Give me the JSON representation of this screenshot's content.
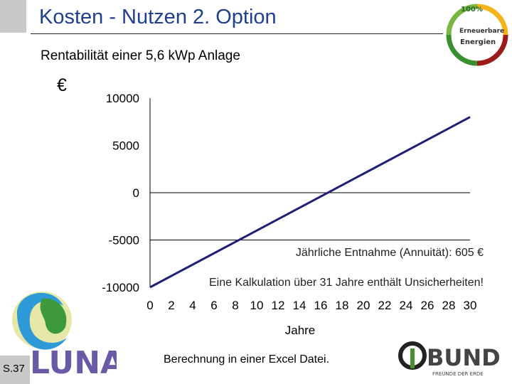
{
  "header": {
    "title": "Kosten - Nutzen 2. Option",
    "subtitle": "Rentabilität einer 5,6 kWp Anlage"
  },
  "renew_logo": {
    "top_text": "100%",
    "line1": "Erneuerbare",
    "line2": "Energien"
  },
  "chart_data": {
    "type": "line",
    "title": "",
    "unit_label": "€",
    "xlabel": "Jahre",
    "ylabel": "€",
    "xlim": [
      0,
      30
    ],
    "ylim": [
      -10000,
      10000
    ],
    "xticks": [
      0,
      2,
      4,
      6,
      8,
      10,
      12,
      14,
      16,
      18,
      20,
      22,
      24,
      26,
      28,
      30
    ],
    "yticks": [
      10000,
      5000,
      0,
      -5000,
      -10000
    ],
    "grid": false,
    "series": [
      {
        "name": "",
        "color": "#1f1f7a",
        "x": [
          0,
          30
        ],
        "y": [
          -10000,
          8000
        ]
      }
    ],
    "annotations": [
      "Jährliche Entnahme (Annuität): 605 €",
      "Eine Kalkulation über 31 Jahre enthält Unsicherheiten!"
    ]
  },
  "footer": {
    "note": "Berechnung in einer Excel Datei.",
    "page": "S.37",
    "luna_logo_text": "LUNA",
    "bund_logo_text": "BUND",
    "bund_subtext": "FREUNDE DER ERDE"
  }
}
